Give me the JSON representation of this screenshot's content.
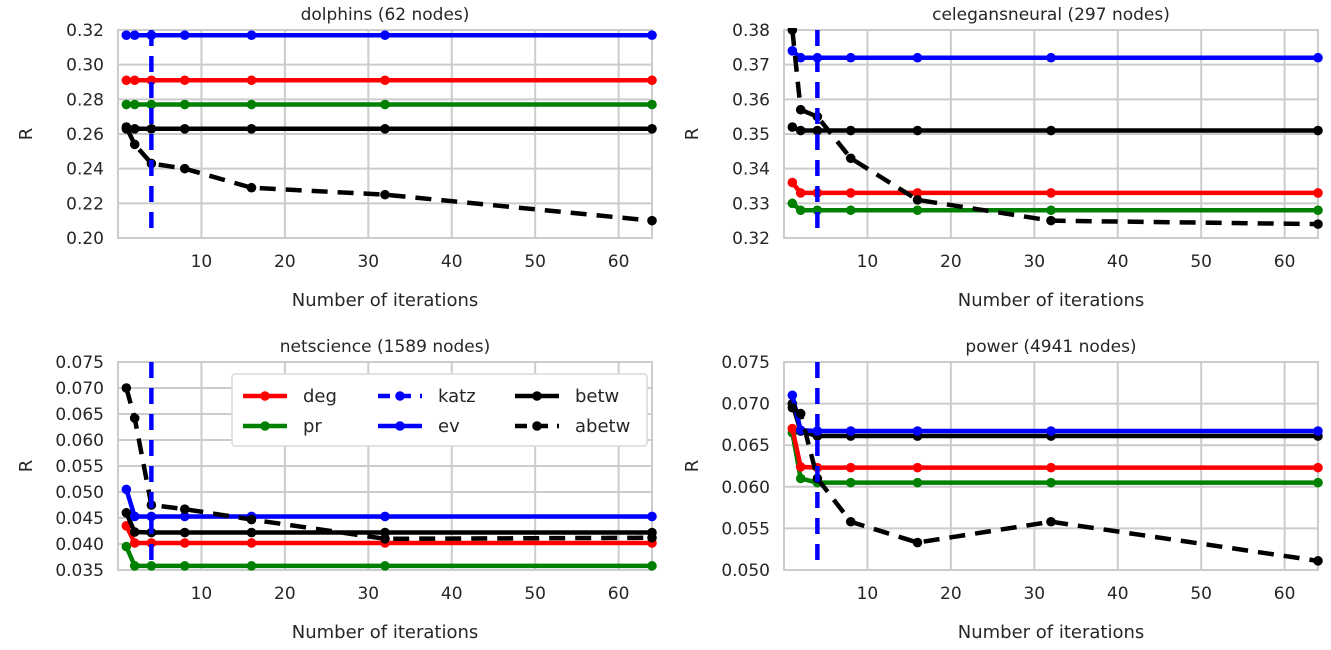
{
  "figure": {
    "legend_panel": 2,
    "legend_columns": [
      [
        "deg",
        "pr"
      ],
      [
        "katz",
        "ev"
      ],
      [
        "betw",
        "abetw"
      ]
    ]
  },
  "series_styles": {
    "deg": {
      "color": "#ff0000",
      "dash": false,
      "marker": true
    },
    "pr": {
      "color": "#008000",
      "dash": false,
      "marker": true
    },
    "katz": {
      "color": "#0000ff",
      "dash": true,
      "marker": false
    },
    "ev": {
      "color": "#0000ff",
      "dash": false,
      "marker": true
    },
    "betw": {
      "color": "#000000",
      "dash": false,
      "marker": true
    },
    "abetw": {
      "color": "#000000",
      "dash": true,
      "marker": true
    }
  },
  "chart_data": [
    {
      "type": "line",
      "title": "dolphins (62 nodes)",
      "xlabel": "Number of iterations",
      "ylabel": "R",
      "xlim": [
        0,
        64
      ],
      "ylim": [
        0.2,
        0.32
      ],
      "xticks": [
        10,
        20,
        30,
        40,
        50,
        60
      ],
      "yticks": [
        0.2,
        0.22,
        0.24,
        0.26,
        0.28,
        0.3,
        0.32
      ],
      "ytick_labels": [
        "0.20",
        "0.22",
        "0.24",
        "0.26",
        "0.28",
        "0.30",
        "0.32"
      ],
      "x": [
        1,
        2,
        4,
        8,
        16,
        32,
        64
      ],
      "katz_x": 4,
      "grid": true,
      "series": [
        {
          "name": "deg",
          "values": [
            0.291,
            0.291,
            0.291,
            0.291,
            0.291,
            0.291,
            0.291
          ]
        },
        {
          "name": "pr",
          "values": [
            0.277,
            0.277,
            0.277,
            0.277,
            0.277,
            0.277,
            0.277
          ]
        },
        {
          "name": "ev",
          "values": [
            0.317,
            0.317,
            0.317,
            0.317,
            0.317,
            0.317,
            0.317
          ]
        },
        {
          "name": "betw",
          "values": [
            0.263,
            0.263,
            0.263,
            0.263,
            0.263,
            0.263,
            0.263
          ]
        },
        {
          "name": "abetw",
          "values": [
            0.264,
            0.254,
            0.243,
            0.24,
            0.229,
            0.225,
            0.21
          ]
        }
      ]
    },
    {
      "type": "line",
      "title": "celegansneural (297 nodes)",
      "xlabel": "Number of iterations",
      "ylabel": "R",
      "xlim": [
        0,
        64
      ],
      "ylim": [
        0.32,
        0.38
      ],
      "xticks": [
        10,
        20,
        30,
        40,
        50,
        60
      ],
      "yticks": [
        0.32,
        0.33,
        0.34,
        0.35,
        0.36,
        0.37,
        0.38
      ],
      "ytick_labels": [
        "0.32",
        "0.33",
        "0.34",
        "0.35",
        "0.36",
        "0.37",
        "0.38"
      ],
      "x": [
        1,
        2,
        4,
        8,
        16,
        32,
        64
      ],
      "katz_x": 4,
      "grid": true,
      "series": [
        {
          "name": "deg",
          "values": [
            0.336,
            0.333,
            0.333,
            0.333,
            0.333,
            0.333,
            0.333
          ]
        },
        {
          "name": "pr",
          "values": [
            0.33,
            0.328,
            0.328,
            0.328,
            0.328,
            0.328,
            0.328
          ]
        },
        {
          "name": "ev",
          "values": [
            0.374,
            0.372,
            0.372,
            0.372,
            0.372,
            0.372,
            0.372
          ]
        },
        {
          "name": "betw",
          "values": [
            0.352,
            0.351,
            0.351,
            0.351,
            0.351,
            0.351,
            0.351
          ]
        },
        {
          "name": "abetw",
          "values": [
            0.38,
            0.357,
            0.355,
            0.343,
            0.331,
            0.325,
            0.324
          ]
        }
      ]
    },
    {
      "type": "line",
      "title": "netscience (1589 nodes)",
      "xlabel": "Number of iterations",
      "ylabel": "R",
      "xlim": [
        0,
        64
      ],
      "ylim": [
        0.035,
        0.075
      ],
      "xticks": [
        10,
        20,
        30,
        40,
        50,
        60
      ],
      "yticks": [
        0.035,
        0.04,
        0.045,
        0.05,
        0.055,
        0.06,
        0.065,
        0.07,
        0.075
      ],
      "ytick_labels": [
        "0.035",
        "0.040",
        "0.045",
        "0.050",
        "0.055",
        "0.060",
        "0.065",
        "0.070",
        "0.075"
      ],
      "x": [
        1,
        2,
        4,
        8,
        16,
        32,
        64
      ],
      "katz_x": 4,
      "grid": true,
      "series": [
        {
          "name": "deg",
          "values": [
            0.0435,
            0.0402,
            0.0402,
            0.0402,
            0.0402,
            0.0402,
            0.0402
          ]
        },
        {
          "name": "pr",
          "values": [
            0.0395,
            0.0358,
            0.0358,
            0.0358,
            0.0358,
            0.0358,
            0.0358
          ]
        },
        {
          "name": "ev",
          "values": [
            0.0505,
            0.0453,
            0.0453,
            0.0453,
            0.0453,
            0.0453,
            0.0453
          ]
        },
        {
          "name": "betw",
          "values": [
            0.046,
            0.0423,
            0.0422,
            0.0422,
            0.0422,
            0.0422,
            0.0422
          ]
        },
        {
          "name": "abetw",
          "values": [
            0.07,
            0.0642,
            0.0475,
            0.0467,
            0.0447,
            0.041,
            0.0412
          ]
        }
      ]
    },
    {
      "type": "line",
      "title": "power (4941 nodes)",
      "xlabel": "Number of iterations",
      "ylabel": "R",
      "xlim": [
        0,
        64
      ],
      "ylim": [
        0.05,
        0.075
      ],
      "xticks": [
        10,
        20,
        30,
        40,
        50,
        60
      ],
      "yticks": [
        0.05,
        0.055,
        0.06,
        0.065,
        0.07,
        0.075
      ],
      "ytick_labels": [
        "0.050",
        "0.055",
        "0.060",
        "0.065",
        "0.070",
        "0.075"
      ],
      "x": [
        1,
        2,
        4,
        8,
        16,
        32,
        64
      ],
      "katz_x": 4,
      "grid": true,
      "series": [
        {
          "name": "deg",
          "values": [
            0.067,
            0.0624,
            0.0623,
            0.0623,
            0.0623,
            0.0623,
            0.0623
          ]
        },
        {
          "name": "pr",
          "values": [
            0.0665,
            0.061,
            0.0605,
            0.0605,
            0.0605,
            0.0605,
            0.0605
          ]
        },
        {
          "name": "ev",
          "values": [
            0.071,
            0.0668,
            0.0667,
            0.0667,
            0.0667,
            0.0667,
            0.0667
          ]
        },
        {
          "name": "betw",
          "values": [
            0.07,
            0.0667,
            0.0661,
            0.0661,
            0.0661,
            0.0661,
            0.0661
          ]
        },
        {
          "name": "abetw",
          "values": [
            0.0695,
            0.0688,
            0.061,
            0.0558,
            0.0533,
            0.0558,
            0.0511
          ]
        }
      ]
    }
  ]
}
